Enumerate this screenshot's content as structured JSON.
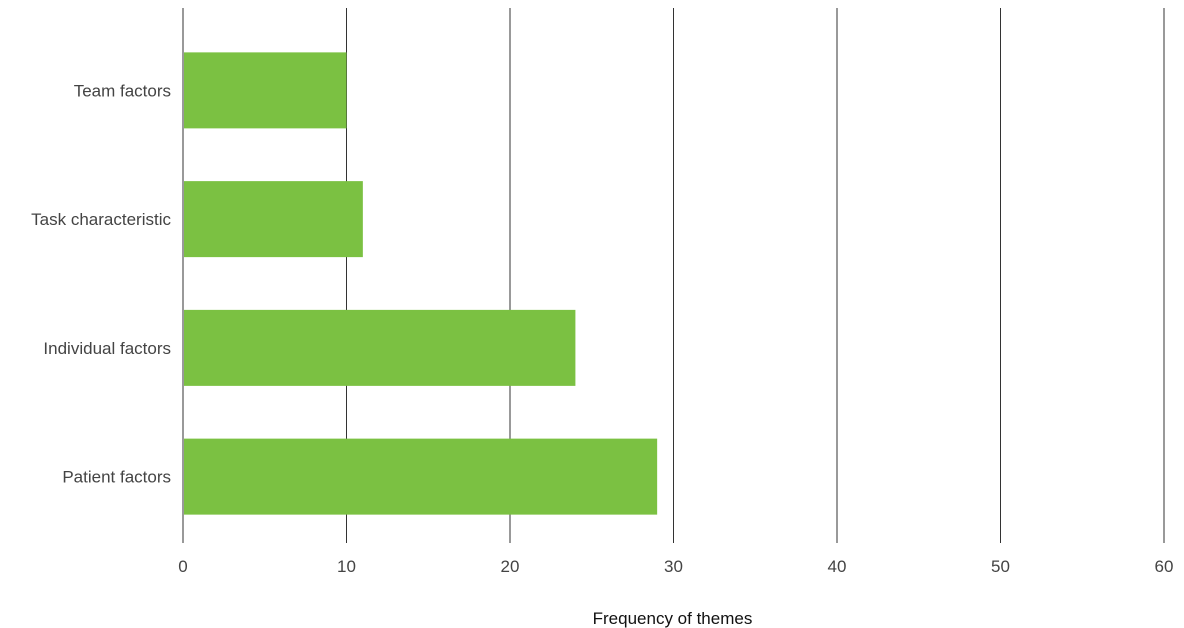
{
  "chart_data": {
    "type": "bar",
    "orientation": "horizontal",
    "categories": [
      "Team factors",
      "Task characteristic",
      "Individual factors",
      "Patient factors"
    ],
    "values": [
      10,
      11,
      24,
      29
    ],
    "xlabel": "Frequency of themes",
    "ylabel": "",
    "xlim": [
      0,
      60
    ],
    "xticks": [
      "0",
      "10",
      "20",
      "30",
      "40",
      "50",
      "60"
    ],
    "grid": "vertical",
    "bar_color": "#7BC142",
    "legend": "none"
  }
}
